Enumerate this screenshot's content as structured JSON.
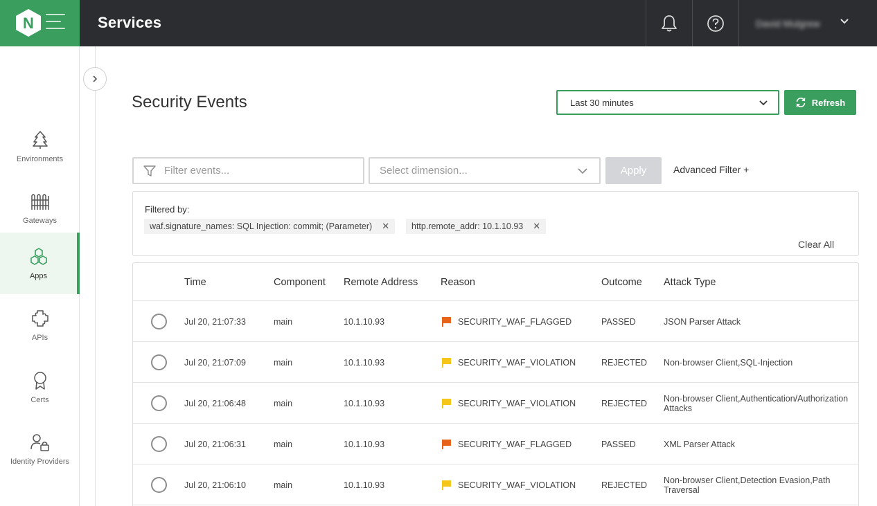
{
  "topbar": {
    "title": "Services",
    "user_name": "David Mulgrew",
    "logo_letter": "N"
  },
  "sidebar": {
    "items": [
      {
        "label": "Environments",
        "icon": "tree-icon"
      },
      {
        "label": "Gateways",
        "icon": "gateway-icon"
      },
      {
        "label": "Apps",
        "icon": "apps-hexagons-icon",
        "active": true
      },
      {
        "label": "APIs",
        "icon": "api-puzzle-icon"
      },
      {
        "label": "Certs",
        "icon": "certificate-ribbon-icon"
      },
      {
        "label": "Identity Providers",
        "icon": "identity-lock-icon"
      }
    ]
  },
  "main": {
    "heading": "Security Events",
    "time_range": "Last 30 minutes",
    "refresh_label": "Refresh",
    "filter_placeholder": "Filter events...",
    "dimension_placeholder": "Select dimension...",
    "apply_label": "Apply",
    "advanced_filter_label": "Advanced Filter +",
    "filtered_by_label": "Filtered by:",
    "chips": [
      "waf.signature_names: SQL Injection: commit; (Parameter)",
      "http.remote_addr: 10.1.10.93"
    ],
    "clear_all_label": "Clear All"
  },
  "table": {
    "columns": [
      "Time",
      "Component",
      "Remote Address",
      "Reason",
      "Outcome",
      "Attack Type"
    ],
    "rows": [
      {
        "time": "Jul 20, 21:07:33",
        "component": "main",
        "remote": "10.1.10.93",
        "reason": "SECURITY_WAF_FLAGGED",
        "outcome": "PASSED",
        "attack": "JSON Parser Attack",
        "flag_color": "#e8641b"
      },
      {
        "time": "Jul 20, 21:07:09",
        "component": "main",
        "remote": "10.1.10.93",
        "reason": "SECURITY_WAF_VIOLATION",
        "outcome": "REJECTED",
        "attack": "Non-browser Client,SQL-Injection",
        "flag_color": "#f5c518"
      },
      {
        "time": "Jul 20, 21:06:48",
        "component": "main",
        "remote": "10.1.10.93",
        "reason": "SECURITY_WAF_VIOLATION",
        "outcome": "REJECTED",
        "attack": "Non-browser Client,Authentication/Authorization Attacks",
        "flag_color": "#f5c518"
      },
      {
        "time": "Jul 20, 21:06:31",
        "component": "main",
        "remote": "10.1.10.93",
        "reason": "SECURITY_WAF_FLAGGED",
        "outcome": "PASSED",
        "attack": "XML Parser Attack",
        "flag_color": "#e8641b"
      },
      {
        "time": "Jul 20, 21:06:10",
        "component": "main",
        "remote": "10.1.10.93",
        "reason": "SECURITY_WAF_VIOLATION",
        "outcome": "REJECTED",
        "attack": "Non-browser Client,Detection Evasion,Path Traversal",
        "flag_color": "#f5c518"
      }
    ]
  },
  "colors": {
    "brand_green": "#3a9e5f",
    "topbar_bg": "#2b2d30",
    "flag_flagged": "#e8641b",
    "flag_violation": "#f5c518"
  }
}
